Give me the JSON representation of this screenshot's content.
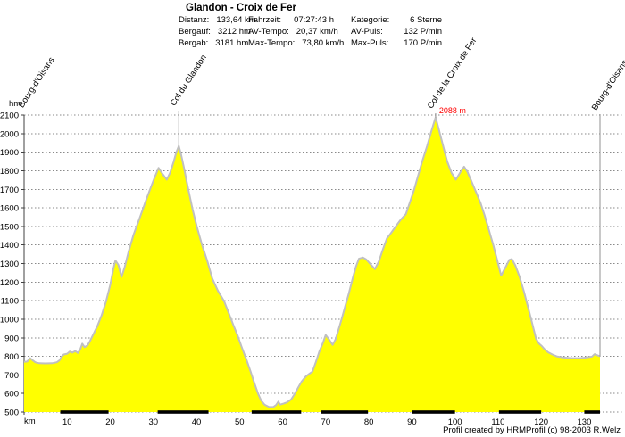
{
  "header": {
    "title": "Glandon - Croix de Fer",
    "stat_columns": [
      [
        {
          "label": "Distanz:",
          "value": "133,64 km"
        },
        {
          "label": "Bergauf:",
          "value": "3212 hm"
        },
        {
          "label": "Bergab:",
          "value": "3181 hm"
        }
      ],
      [
        {
          "label": "Fahrzeit:",
          "value": "07:27:43 h"
        },
        {
          "label": "AV-Tempo:",
          "value": "20,37 km/h"
        },
        {
          "label": "Max-Tempo:",
          "value": "73,80 km/h"
        }
      ],
      [
        {
          "label": "Kategorie:",
          "value": "6 Sterne"
        },
        {
          "label": "AV-Puls:",
          "value": "132 P/min"
        },
        {
          "label": "Max-Puls:",
          "value": "170 P/min"
        }
      ]
    ]
  },
  "chart_data": {
    "type": "area",
    "xlabel": "km",
    "ylabel": "hm",
    "xlim": [
      0,
      133.64
    ],
    "ylim": [
      500,
      2100
    ],
    "x_ticks": [
      10,
      20,
      30,
      40,
      50,
      60,
      70,
      80,
      90,
      100,
      110,
      120,
      130
    ],
    "y_ticks": [
      500,
      600,
      700,
      800,
      900,
      1000,
      1100,
      1200,
      1300,
      1400,
      1500,
      1600,
      1700,
      1800,
      1900,
      2000,
      2100
    ],
    "grid": true,
    "fill_color": "#FFFF00",
    "line_color": "#c0c0c0",
    "grid_color": "#8a8a8a",
    "axis_color": "#404040",
    "annotation_color": "#ff0000",
    "scale_bar_color": "#000000",
    "scale_bars_km": [
      [
        8.4,
        19.6
      ],
      [
        31.0,
        42.8
      ],
      [
        52.8,
        64.3
      ],
      [
        69.0,
        79.8
      ],
      [
        90.0,
        100.0
      ],
      [
        110.2,
        120.0
      ],
      [
        130.0,
        133.64
      ]
    ],
    "annotations": [
      {
        "text": "Bourg-d'Oisans",
        "km": 0.6,
        "bottom_y": 124,
        "line_top_y": null,
        "line_elev": null
      },
      {
        "text": "Col du Glandon",
        "km": 35.9,
        "bottom_y": 122,
        "line_top_y": 124,
        "line_elev": 1933
      },
      {
        "text": "Col de la Croix de Fer",
        "km": 95.5,
        "bottom_y": 125,
        "line_top_y": 127,
        "line_elev": 2088,
        "value_label": "2088 m"
      },
      {
        "text": "Bourg-d'Oisans",
        "km": 133.64,
        "bottom_y": 127,
        "line_top_y": 128,
        "line_elev": 800
      }
    ],
    "profile_km_hm": [
      [
        0,
        770
      ],
      [
        0.7,
        772
      ],
      [
        1.4,
        790
      ],
      [
        2,
        778
      ],
      [
        2.6,
        768
      ],
      [
        3.5,
        763
      ],
      [
        5,
        762
      ],
      [
        6.5,
        763
      ],
      [
        7.6,
        768
      ],
      [
        8.2,
        778
      ],
      [
        8.7,
        798
      ],
      [
        9.2,
        810
      ],
      [
        10,
        814
      ],
      [
        10.6,
        826
      ],
      [
        11.2,
        820
      ],
      [
        11.9,
        828
      ],
      [
        12.5,
        818
      ],
      [
        13,
        836
      ],
      [
        13.5,
        868
      ],
      [
        14,
        850
      ],
      [
        14.7,
        858
      ],
      [
        15.2,
        878
      ],
      [
        16,
        915
      ],
      [
        17,
        962
      ],
      [
        18,
        1022
      ],
      [
        19,
        1095
      ],
      [
        20,
        1185
      ],
      [
        20.7,
        1270
      ],
      [
        21.2,
        1317
      ],
      [
        21.9,
        1292
      ],
      [
        22.6,
        1228
      ],
      [
        23.3,
        1278
      ],
      [
        24.3,
        1368
      ],
      [
        25.4,
        1455
      ],
      [
        26.4,
        1518
      ],
      [
        27.4,
        1582
      ],
      [
        28.4,
        1648
      ],
      [
        29.4,
        1710
      ],
      [
        30.4,
        1770
      ],
      [
        31.2,
        1815
      ],
      [
        32.1,
        1784
      ],
      [
        33.1,
        1752
      ],
      [
        33.9,
        1790
      ],
      [
        34.7,
        1848
      ],
      [
        35.3,
        1898
      ],
      [
        35.9,
        1933
      ],
      [
        36.4,
        1890
      ],
      [
        37.1,
        1815
      ],
      [
        38.1,
        1700
      ],
      [
        39.1,
        1592
      ],
      [
        40.1,
        1498
      ],
      [
        41.3,
        1400
      ],
      [
        42.5,
        1315
      ],
      [
        43.7,
        1218
      ],
      [
        45,
        1152
      ],
      [
        46.4,
        1098
      ],
      [
        47.5,
        1032
      ],
      [
        48.5,
        972
      ],
      [
        49.5,
        915
      ],
      [
        50.5,
        850
      ],
      [
        51.5,
        788
      ],
      [
        52.5,
        722
      ],
      [
        53.5,
        652
      ],
      [
        54.3,
        598
      ],
      [
        55,
        562
      ],
      [
        55.8,
        540
      ],
      [
        56.8,
        528
      ],
      [
        57.8,
        527
      ],
      [
        58.5,
        538
      ],
      [
        59,
        556
      ],
      [
        59.4,
        540
      ],
      [
        60.2,
        545
      ],
      [
        61,
        552
      ],
      [
        62,
        568
      ],
      [
        62.8,
        598
      ],
      [
        63.6,
        632
      ],
      [
        64.4,
        664
      ],
      [
        65.4,
        692
      ],
      [
        66.3,
        708
      ],
      [
        66.9,
        717
      ],
      [
        67.7,
        768
      ],
      [
        68.5,
        825
      ],
      [
        69.4,
        876
      ],
      [
        70,
        915
      ],
      [
        70.7,
        893
      ],
      [
        71.6,
        862
      ],
      [
        72.3,
        892
      ],
      [
        73,
        946
      ],
      [
        73.8,
        1010
      ],
      [
        74.6,
        1076
      ],
      [
        75.4,
        1142
      ],
      [
        76.2,
        1216
      ],
      [
        77,
        1282
      ],
      [
        77.7,
        1326
      ],
      [
        78.6,
        1332
      ],
      [
        79.4,
        1322
      ],
      [
        80.4,
        1296
      ],
      [
        81.4,
        1270
      ],
      [
        82.3,
        1310
      ],
      [
        83.3,
        1378
      ],
      [
        84.2,
        1436
      ],
      [
        85.2,
        1466
      ],
      [
        86.3,
        1502
      ],
      [
        87.4,
        1536
      ],
      [
        88.6,
        1566
      ],
      [
        89.5,
        1628
      ],
      [
        90.5,
        1698
      ],
      [
        91.5,
        1778
      ],
      [
        92.5,
        1858
      ],
      [
        93.5,
        1932
      ],
      [
        94.5,
        2012
      ],
      [
        95.5,
        2088
      ],
      [
        96.3,
        2018
      ],
      [
        97.2,
        1938
      ],
      [
        98.2,
        1848
      ],
      [
        99.2,
        1788
      ],
      [
        100.2,
        1752
      ],
      [
        101.2,
        1790
      ],
      [
        102.1,
        1822
      ],
      [
        102.9,
        1794
      ],
      [
        103.9,
        1738
      ],
      [
        104.9,
        1684
      ],
      [
        105.9,
        1628
      ],
      [
        106.9,
        1558
      ],
      [
        107.9,
        1478
      ],
      [
        108.9,
        1398
      ],
      [
        109.9,
        1308
      ],
      [
        110.7,
        1235
      ],
      [
        111.6,
        1274
      ],
      [
        112.6,
        1320
      ],
      [
        113.2,
        1324
      ],
      [
        114,
        1290
      ],
      [
        115,
        1228
      ],
      [
        116,
        1148
      ],
      [
        117,
        1060
      ],
      [
        118,
        970
      ],
      [
        118.8,
        895
      ],
      [
        119.5,
        868
      ],
      [
        120.1,
        856
      ],
      [
        120.8,
        838
      ],
      [
        121.6,
        822
      ],
      [
        122.6,
        810
      ],
      [
        123.6,
        800
      ],
      [
        125,
        794
      ],
      [
        127,
        790
      ],
      [
        129,
        790
      ],
      [
        130.6,
        794
      ],
      [
        131.8,
        799
      ],
      [
        132.4,
        812
      ],
      [
        133,
        806
      ],
      [
        133.64,
        800
      ]
    ]
  },
  "footer": {
    "credit": "Profil created by HRMProfil (c) 98-2003 R.Welz"
  }
}
